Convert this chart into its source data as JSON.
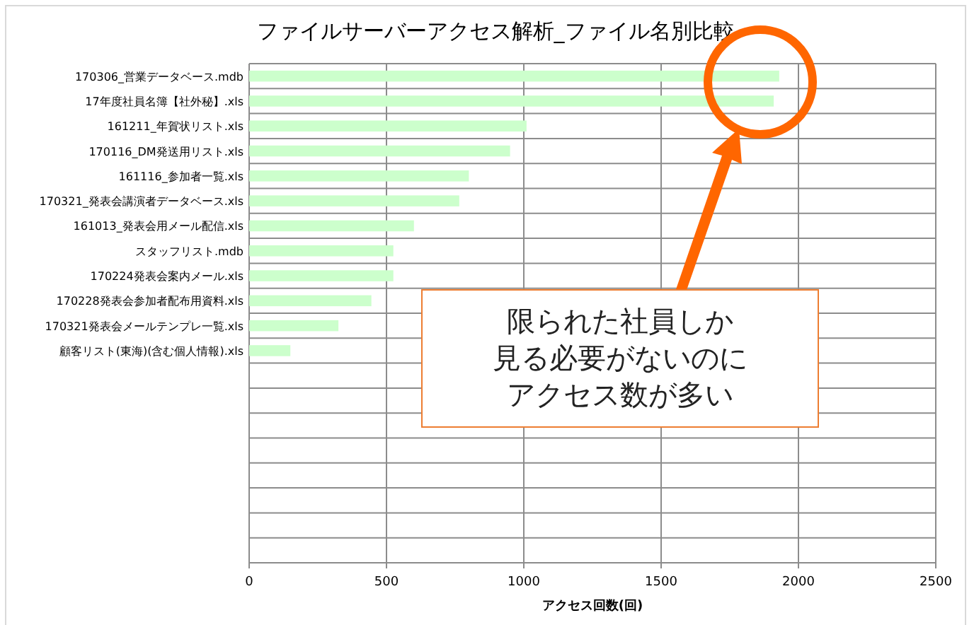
{
  "chart_data": {
    "type": "bar",
    "orientation": "horizontal",
    "title": "ファイルサーバーアクセス解析_ファイル名別比較",
    "xlabel": "アクセス回数(回)",
    "categories": [
      "170306_営業データベース.mdb",
      "17年度社員名簿【社外秘】.xls",
      "161211_年賀状リスト.xls",
      "170116_DM発送用リスト.xls",
      "161116_参加者一覧.xls",
      "170321_発表会講演者データベース.xls",
      "161013_発表会用メール配信.xls",
      "スタッフリスト.mdb",
      "170224発表会案内メール.xls",
      "170228発表会参加者配布用資料.xls",
      "170321発表会メールテンプレ一覧.xls",
      "顧客リスト(東海)(含む個人情報).xls",
      null,
      null,
      null,
      null,
      null,
      null,
      null,
      null
    ],
    "values": [
      1930,
      1910,
      1010,
      950,
      800,
      765,
      600,
      525,
      525,
      445,
      325,
      150,
      null,
      null,
      null,
      null,
      null,
      null,
      null,
      null
    ],
    "color": "#ccffcc",
    "xlim": [
      0,
      2500
    ],
    "xticks": [
      0,
      500,
      1000,
      1500,
      2000,
      2500
    ],
    "grid": true,
    "annotations": [
      "限られた社員しか",
      "見る必要がないのに",
      "アクセス数が多い"
    ]
  }
}
